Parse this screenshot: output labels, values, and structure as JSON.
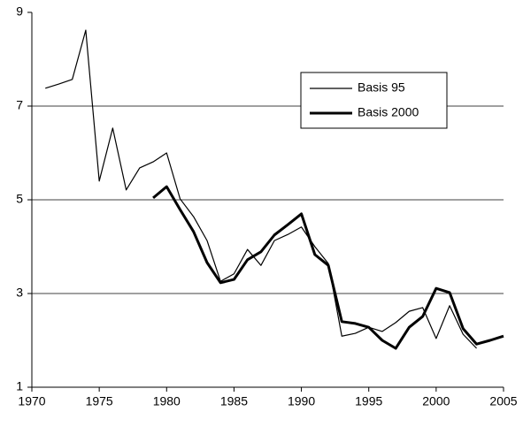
{
  "chart_data": {
    "type": "line",
    "series": [
      {
        "name": "Basis 95",
        "color": "#000000",
        "width": 1.2,
        "x": [
          1971,
          1972,
          1973,
          1974,
          1975,
          1976,
          1977,
          1978,
          1979,
          1980,
          1981,
          1982,
          1983,
          1984,
          1985,
          1986,
          1987,
          1988,
          1989,
          1990,
          1991,
          1992,
          1993,
          1994,
          1995,
          1996,
          1997,
          1998,
          1999,
          2000,
          2001,
          2002,
          2003
        ],
        "values": [
          7.38,
          7.47,
          7.57,
          8.62,
          5.4,
          6.53,
          5.21,
          5.68,
          5.81,
          6.0,
          5.02,
          4.64,
          4.13,
          3.26,
          3.42,
          3.94,
          3.6,
          4.13,
          4.26,
          4.42,
          4.0,
          3.64,
          2.09,
          2.15,
          2.28,
          2.19,
          2.38,
          2.62,
          2.7,
          2.04,
          2.74,
          2.13,
          1.83
        ]
      },
      {
        "name": "Basis 2000",
        "color": "#000000",
        "width": 3,
        "x": [
          1979,
          1980,
          1981,
          1982,
          1983,
          1984,
          1985,
          1986,
          1987,
          1988,
          1989,
          1990,
          1991,
          1992,
          1993,
          1994,
          1995,
          1996,
          1997,
          1998,
          1999,
          2000,
          2001,
          2002,
          2003,
          2004,
          2005
        ],
        "values": [
          5.04,
          5.28,
          4.79,
          4.32,
          3.66,
          3.23,
          3.3,
          3.72,
          3.89,
          4.25,
          4.47,
          4.7,
          3.83,
          3.6,
          2.4,
          2.36,
          2.28,
          2.0,
          1.83,
          2.28,
          2.51,
          3.11,
          3.02,
          2.25,
          1.92,
          2.0,
          2.09
        ]
      }
    ],
    "xlim": [
      1970,
      2005
    ],
    "xticks": [
      1970,
      1975,
      1980,
      1985,
      1990,
      1995,
      2000,
      2005
    ],
    "ylim": [
      1,
      9
    ],
    "yticks": [
      1,
      3,
      5,
      7,
      9
    ],
    "grid": true,
    "legend": "upper-right"
  }
}
